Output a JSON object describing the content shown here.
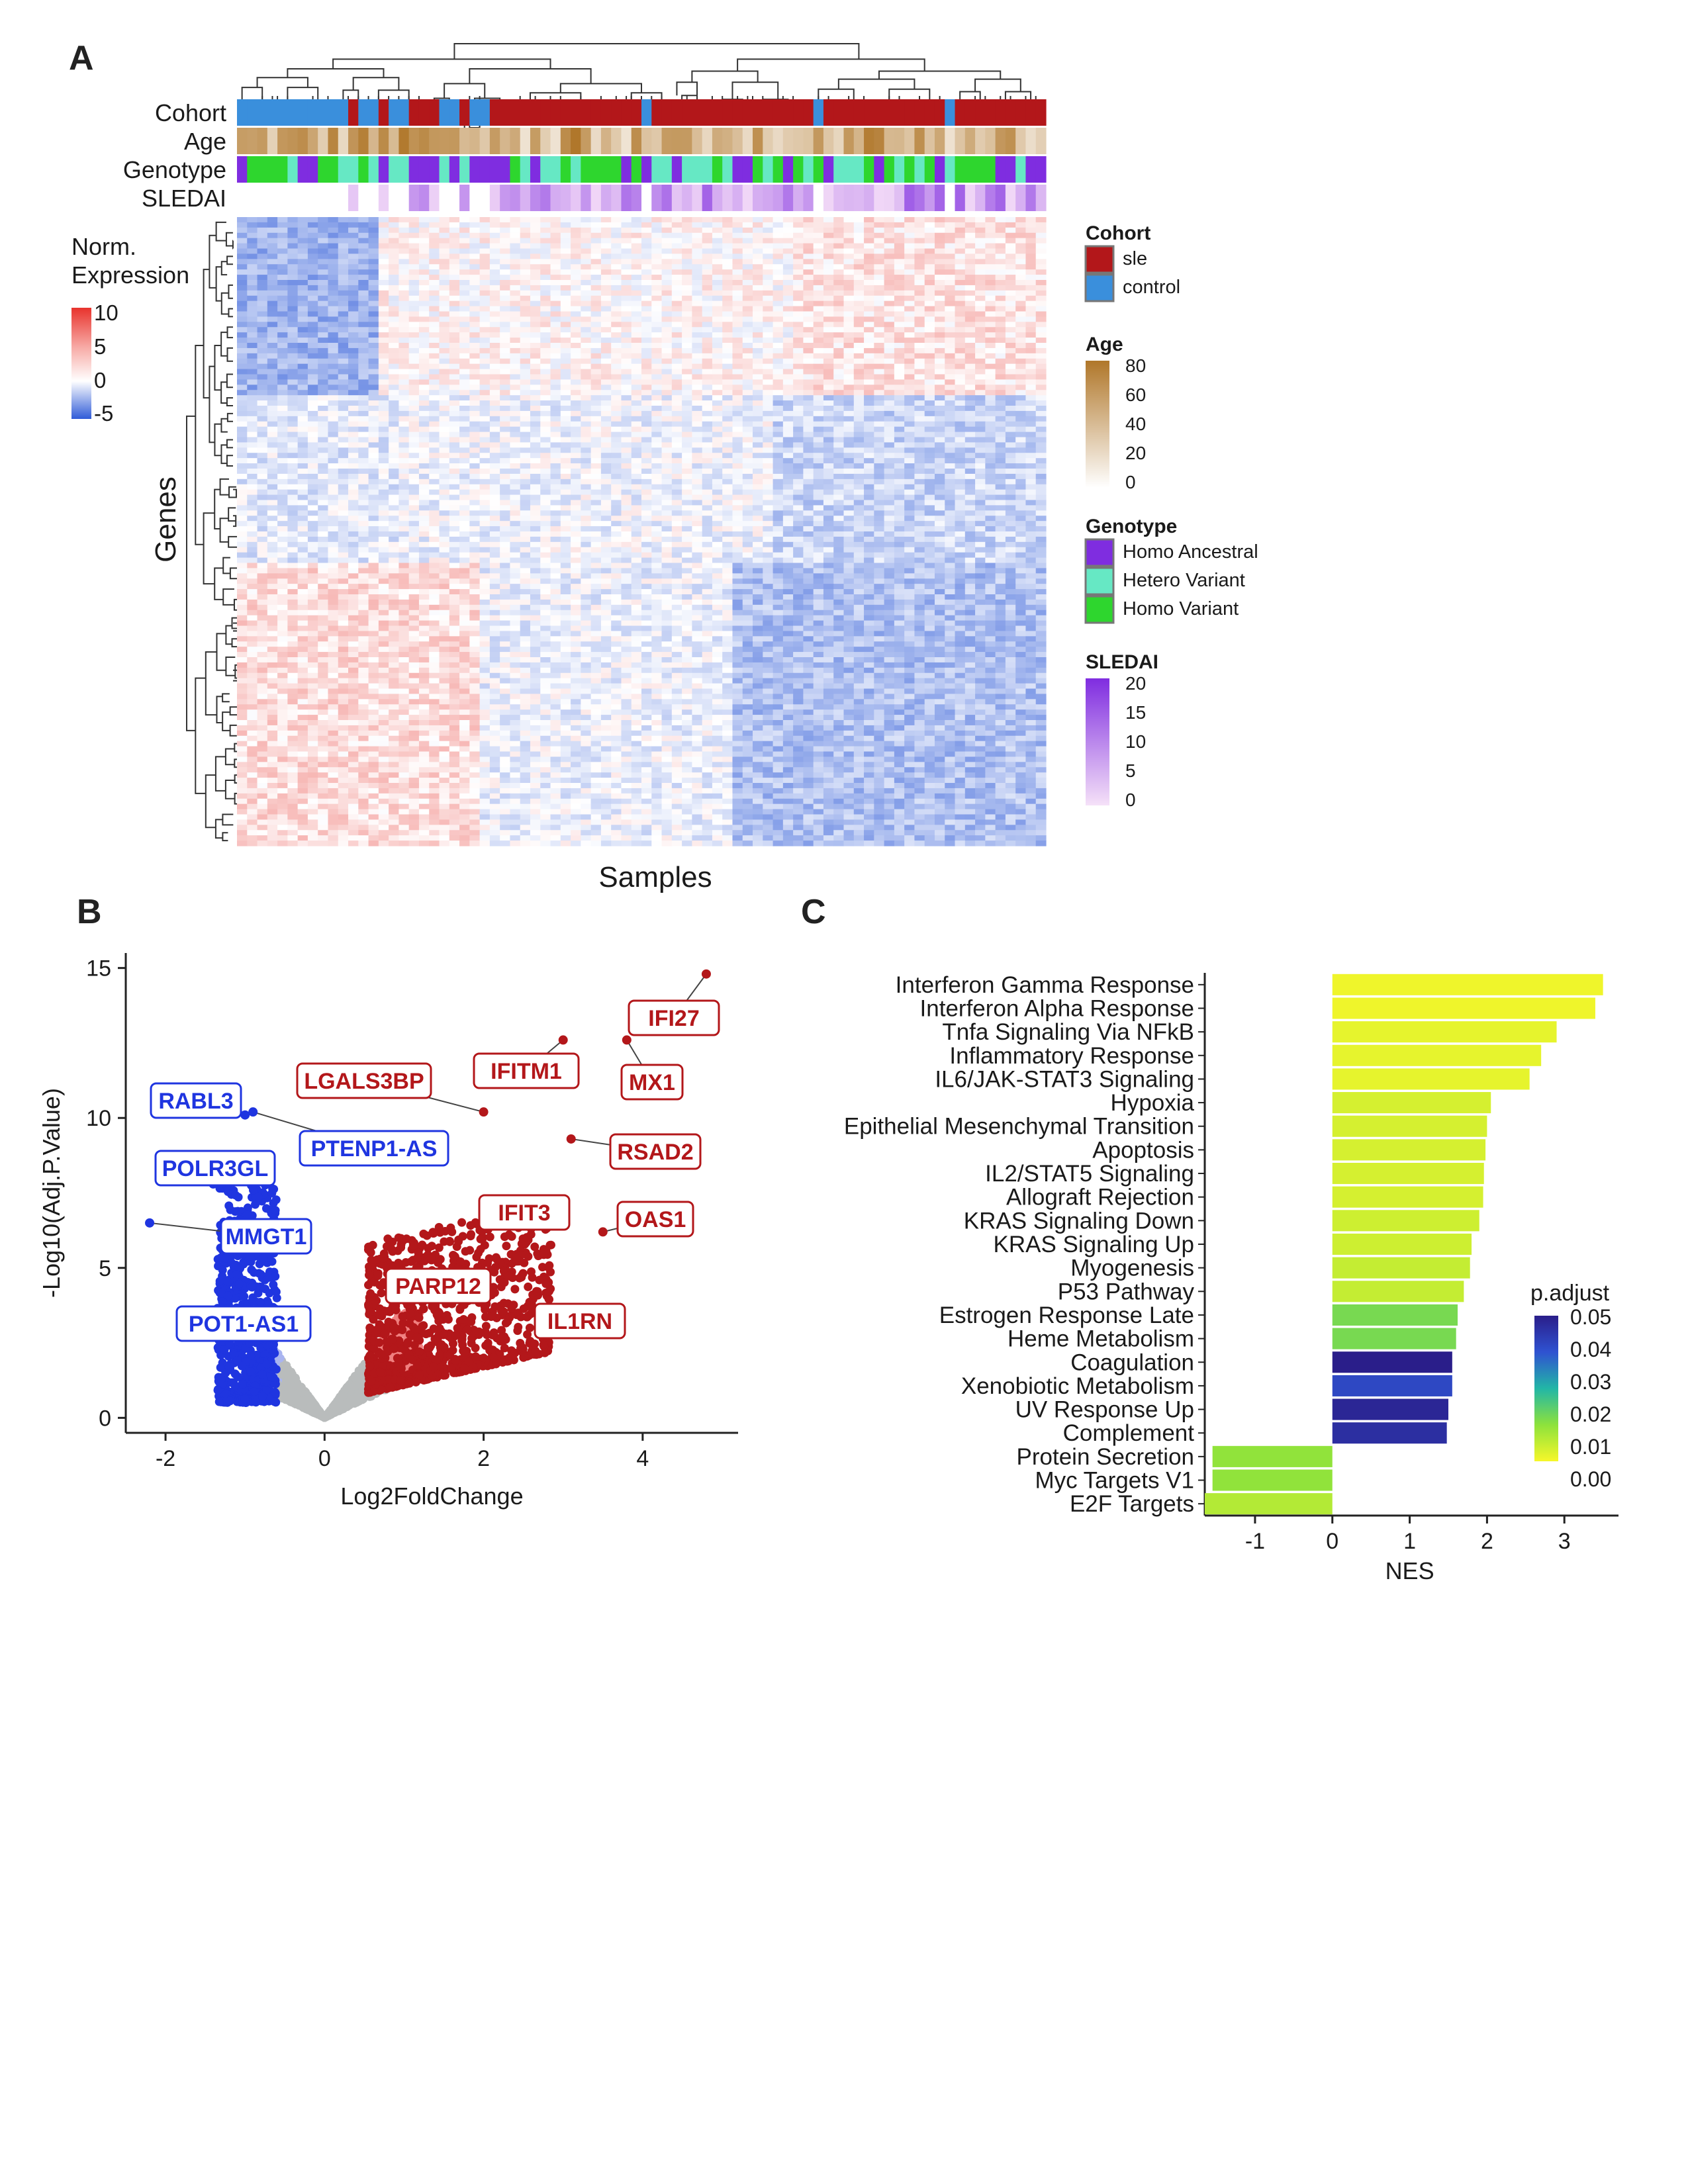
{
  "panels": {
    "A": {
      "label": "A",
      "annotations": [
        "Cohort",
        "Age",
        "Genotype",
        "SLEDAI"
      ],
      "xlabel": "Samples",
      "ylabel": "Genes",
      "expression_legend": {
        "title_line1": "Norm.",
        "title_line2": "Expression",
        "ticks": [
          "10",
          "5",
          "0",
          "-5"
        ],
        "high": "#e8332d",
        "mid": "#ffffff",
        "low": "#2f5bd8"
      },
      "cohort_legend": {
        "title": "Cohort",
        "items": [
          {
            "label": "sle",
            "color": "#b3171a"
          },
          {
            "label": "control",
            "color": "#3a8fdc"
          }
        ]
      },
      "age_legend": {
        "title": "Age",
        "ticks": [
          "80",
          "60",
          "40",
          "20",
          "0"
        ],
        "low": "#ffffff",
        "high": "#b0772a"
      },
      "genotype_legend": {
        "title": "Genotype",
        "items": [
          {
            "label": "Homo Ancestral",
            "color": "#7f2de0"
          },
          {
            "label": "Hetero Variant",
            "color": "#66e8c4"
          },
          {
            "label": "Homo Variant",
            "color": "#2ed62e"
          }
        ]
      },
      "sledai_legend": {
        "title": "SLEDAI",
        "ticks": [
          "20",
          "15",
          "10",
          "5",
          "0"
        ],
        "low": "#f2d9f7",
        "high": "#7f2de0"
      }
    },
    "B": {
      "label": "B",
      "xlabel": "Log2FoldChange",
      "ylabel": "-Log10(Adj.P.Value)",
      "x_ticks": [
        "-2",
        "0",
        "2",
        "4"
      ],
      "y_ticks": [
        "0",
        "5",
        "10",
        "15"
      ]
    },
    "C": {
      "label": "C",
      "xlabel": "NES",
      "x_ticks": [
        "-1",
        "0",
        "1",
        "2",
        "3"
      ],
      "legend_title": "p.adjust",
      "legend_ticks": [
        "0.05",
        "0.04",
        "0.03",
        "0.02",
        "0.01",
        "0.00"
      ]
    }
  },
  "chart_data": [
    {
      "type": "heatmap",
      "title": "",
      "xlabel": "Samples",
      "ylabel": "Genes",
      "row_annotations": [
        "Cohort",
        "Age",
        "Genotype",
        "SLEDAI"
      ],
      "color_scale": {
        "min": -5,
        "max": 10,
        "low": "#2f5bd8",
        "mid": "#ffffff",
        "high": "#e8332d"
      },
      "cohort_segments": [
        {
          "group": "control",
          "samples": 11
        },
        {
          "group": "sle",
          "samples": 1
        },
        {
          "group": "control",
          "samples": 2
        },
        {
          "group": "sle",
          "samples": 1
        },
        {
          "group": "control",
          "samples": 2
        },
        {
          "group": "sle",
          "samples": 3
        },
        {
          "group": "control",
          "samples": 2
        },
        {
          "group": "sle",
          "samples": 1
        },
        {
          "group": "control",
          "samples": 2
        },
        {
          "group": "sle",
          "samples": 15
        },
        {
          "group": "control",
          "samples": 1
        },
        {
          "group": "sle",
          "samples": 16
        },
        {
          "group": "control",
          "samples": 1
        },
        {
          "group": "sle",
          "samples": 12
        },
        {
          "group": "control",
          "samples": 1
        },
        {
          "group": "sle",
          "samples": 9
        }
      ]
    },
    {
      "type": "scatter",
      "title": "",
      "xlabel": "Log2FoldChange",
      "ylabel": "-Log10(Adj.P.Value)",
      "xlim": [
        -2.5,
        5.2
      ],
      "ylim": [
        -0.5,
        15.5
      ],
      "labeled_genes": [
        {
          "gene": "IFI27",
          "x": 4.8,
          "y": 14.8,
          "direction": "up"
        },
        {
          "gene": "IFITM1",
          "x": 3.0,
          "y": 12.6,
          "direction": "up"
        },
        {
          "gene": "MX1",
          "x": 3.8,
          "y": 12.6,
          "direction": "up"
        },
        {
          "gene": "LGALS3BP",
          "x": 2.0,
          "y": 10.2,
          "direction": "up"
        },
        {
          "gene": "RSAD2",
          "x": 3.1,
          "y": 9.3,
          "direction": "up"
        },
        {
          "gene": "IFIT3",
          "x": 2.7,
          "y": 7.3,
          "direction": "up"
        },
        {
          "gene": "OAS1",
          "x": 3.5,
          "y": 6.2,
          "direction": "up"
        },
        {
          "gene": "PARP12",
          "x": 2.0,
          "y": 4.5,
          "direction": "up"
        },
        {
          "gene": "IL1RN",
          "x": 2.6,
          "y": 3.8,
          "direction": "up"
        },
        {
          "gene": "RABL3",
          "x": -1.0,
          "y": 10.1,
          "direction": "down"
        },
        {
          "gene": "PTENP1-AS",
          "x": -0.9,
          "y": 10.2,
          "direction": "down"
        },
        {
          "gene": "POLR3GL",
          "x": -1.4,
          "y": 7.8,
          "direction": "down"
        },
        {
          "gene": "MMGT1",
          "x": -2.2,
          "y": 6.5,
          "direction": "down"
        },
        {
          "gene": "POT1-AS1",
          "x": -0.9,
          "y": 3.5,
          "direction": "down"
        }
      ],
      "colors": {
        "up": "#b3171a",
        "up_weak": "#f08080",
        "down": "#1f35e0",
        "down_weak": "#a9b4f0",
        "ns": "#b9bcbc"
      }
    },
    {
      "type": "bar",
      "orientation": "horizontal",
      "title": "",
      "xlabel": "NES",
      "ylabel": "",
      "xlim": [
        -1.65,
        3.7
      ],
      "categories": [
        "Interferon Gamma Response",
        "Interferon Alpha Response",
        "Tnfa Signaling Via NFkB",
        "Inflammatory Response",
        "IL6/JAK-STAT3 Signaling",
        "Hypoxia",
        "Epithelial Mesenchymal Transition",
        "Apoptosis",
        "IL2/STAT5 Signaling",
        "Allograft Rejection",
        "KRAS Signaling Down",
        "KRAS Signaling Up",
        "Myogenesis",
        "P53 Pathway",
        "Estrogen Response Late",
        "Heme Metabolism",
        "Coagulation",
        "Xenobiotic Metabolism",
        "UV Response Up",
        "Complement",
        "Protein Secretion",
        "Myc Targets V1",
        "E2F Targets"
      ],
      "values": [
        3.5,
        3.4,
        2.9,
        2.7,
        2.55,
        2.05,
        2.0,
        1.98,
        1.96,
        1.95,
        1.9,
        1.8,
        1.78,
        1.7,
        1.62,
        1.6,
        1.55,
        1.55,
        1.5,
        1.48,
        -1.55,
        -1.55,
        -1.65
      ],
      "p_adjust": [
        0.001,
        0.001,
        0.002,
        0.002,
        0.002,
        0.004,
        0.004,
        0.004,
        0.004,
        0.004,
        0.005,
        0.005,
        0.006,
        0.006,
        0.015,
        0.015,
        0.05,
        0.04,
        0.048,
        0.046,
        0.012,
        0.012,
        0.008
      ],
      "color_scale": {
        "min": 0.0,
        "max": 0.05,
        "legend": "p.adjust"
      }
    }
  ]
}
